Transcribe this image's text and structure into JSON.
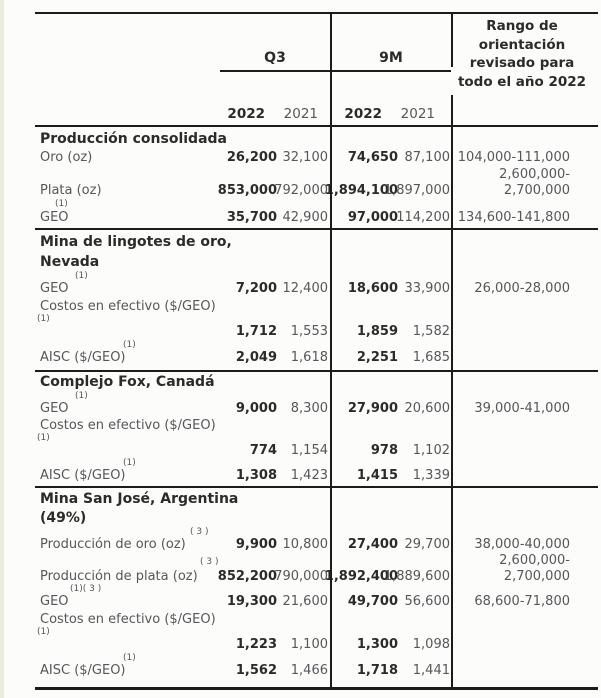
{
  "colors": {
    "background": "#fcfcfa",
    "edge_strip": "#ececde",
    "rule_line": "#1b1b19",
    "text_dark": "#2b2b2b",
    "text_gray": "#55575b"
  },
  "header": {
    "q3_label": "Q3",
    "nine_month_label": "9M",
    "years": [
      "2022",
      "2021",
      "2022",
      "2021"
    ],
    "guidance_title_lines": [
      "Rango de",
      "orientación",
      "revisado para",
      "todo el año 2022"
    ]
  },
  "table": {
    "sections": [
      {
        "title_lines": [
          "Producción consolidada"
        ],
        "rows": [
          {
            "type": "data",
            "label": "Oro (oz)",
            "values": [
              "26,200",
              "32,100",
              "74,650",
              "87,100"
            ],
            "guidance": "104,000-111,000"
          },
          {
            "type": "guidance",
            "guidance": "2,600,000-"
          },
          {
            "type": "data",
            "label": "Plata (oz)",
            "values": [
              "853,000",
              "792,000",
              "1,894,100",
              "1,897,000"
            ],
            "guidance": "2,700,000"
          },
          {
            "type": "sup",
            "text": "(1)",
            "indent": 20
          },
          {
            "type": "data",
            "label": "GEO",
            "values": [
              "35,700",
              "42,900",
              "97,000",
              "114,200"
            ],
            "guidance": "134,600-141,800"
          }
        ]
      },
      {
        "title_lines": [
          "Mina de lingotes de oro,",
          "Nevada"
        ],
        "rows": [
          {
            "type": "sup",
            "text": "(1)",
            "indent": 40
          },
          {
            "type": "data",
            "label": "GEO",
            "values": [
              "7,200",
              "12,400",
              "18,600",
              "33,900"
            ],
            "guidance": "26,000-28,000"
          },
          {
            "type": "data",
            "label": "Costos en efectivo ($/GEO)",
            "values": [
              "",
              "",
              "",
              ""
            ],
            "guidance": ""
          },
          {
            "type": "sup",
            "text": "(1)",
            "indent": 2
          },
          {
            "type": "data",
            "label": "",
            "values": [
              "1,712",
              "1,553",
              "1,859",
              "1,582"
            ],
            "guidance": ""
          },
          {
            "type": "sup",
            "text": "(1)",
            "indent": 88
          },
          {
            "type": "data",
            "label": "AISC ($/GEO)",
            "values": [
              "2,049",
              "1,618",
              "2,251",
              "1,685"
            ],
            "guidance": ""
          }
        ]
      },
      {
        "title_lines": [
          "Complejo Fox, Canadá"
        ],
        "rows": [
          {
            "type": "sup",
            "text": "(1)",
            "indent": 40
          },
          {
            "type": "data",
            "label": "GEO",
            "values": [
              "9,000",
              "8,300",
              "27,900",
              "20,600"
            ],
            "guidance": "39,000-41,000"
          },
          {
            "type": "data",
            "label": "Costos en efectivo ($/GEO)",
            "values": [
              "",
              "",
              "",
              ""
            ],
            "guidance": ""
          },
          {
            "type": "sup",
            "text": "(1)",
            "indent": 2
          },
          {
            "type": "data",
            "label": "",
            "values": [
              "774",
              "1,154",
              "978",
              "1,102"
            ],
            "guidance": ""
          },
          {
            "type": "sup",
            "text": "(1)",
            "indent": 88
          },
          {
            "type": "data",
            "label": "AISC ($/GEO)",
            "values": [
              "1,308",
              "1,423",
              "1,415",
              "1,339"
            ],
            "guidance": ""
          }
        ]
      },
      {
        "title_lines": [
          "Mina San José, Argentina",
          "(49%)"
        ],
        "rows": [
          {
            "type": "sup",
            "text": "( 3 )",
            "indent": 155
          },
          {
            "type": "data",
            "label": "Producción de oro (oz)",
            "values": [
              "9,900",
              "10,800",
              "27,400",
              "29,700"
            ],
            "guidance": "38,000-40,000"
          },
          {
            "type": "supg",
            "text": "( 3 )",
            "indent": 165,
            "guidance": "2,600,000-"
          },
          {
            "type": "data",
            "label": "Producción de plata (oz)",
            "values": [
              "852,200",
              "790,000",
              "1,892,400",
              "1,889,600"
            ],
            "guidance": "2,700,000"
          },
          {
            "type": "sup",
            "text": "(1)( 3 )",
            "indent": 35
          },
          {
            "type": "data",
            "label": "GEO",
            "values": [
              "19,300",
              "21,600",
              "49,700",
              "56,600"
            ],
            "guidance": "68,600-71,800"
          },
          {
            "type": "data",
            "label": "Costos en efectivo ($/GEO)",
            "values": [
              "",
              "",
              "",
              ""
            ],
            "guidance": ""
          },
          {
            "type": "sup",
            "text": "(1)",
            "indent": 2
          },
          {
            "type": "data",
            "label": "",
            "values": [
              "1,223",
              "1,100",
              "1,300",
              "1,098"
            ],
            "guidance": ""
          },
          {
            "type": "sup",
            "text": "(1)",
            "indent": 88
          },
          {
            "type": "data",
            "label": "AISC ($/GEO)",
            "values": [
              "1,562",
              "1,466",
              "1,718",
              "1,441"
            ],
            "guidance": ""
          }
        ]
      }
    ]
  }
}
